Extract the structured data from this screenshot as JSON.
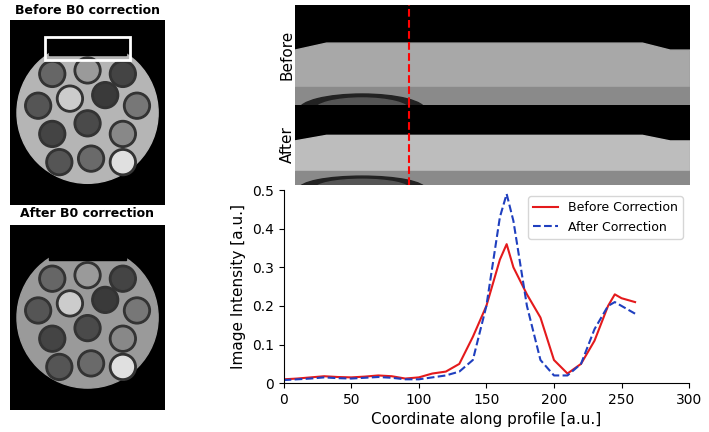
{
  "image_labels": {
    "top_title": "Before B0 correction",
    "bottom_title": "After B0 correction",
    "strip_before": "Before",
    "strip_after": "After"
  },
  "chart_data": {
    "type": "line",
    "x_label": "Coordinate along profile [a.u.]",
    "y_label": "Image Intensity [a.u.]",
    "x": [
      0,
      10,
      20,
      30,
      40,
      50,
      60,
      70,
      80,
      90,
      100,
      110,
      120,
      130,
      140,
      150,
      160,
      165,
      170,
      180,
      190,
      200,
      210,
      220,
      230,
      240,
      245,
      250,
      260
    ],
    "series": [
      {
        "name": "Before Correction",
        "color": "#e41a1c",
        "line_style": "solid",
        "values": [
          0.01,
          0.012,
          0.015,
          0.018,
          0.016,
          0.015,
          0.017,
          0.02,
          0.018,
          0.012,
          0.015,
          0.025,
          0.03,
          0.05,
          0.12,
          0.2,
          0.32,
          0.36,
          0.3,
          0.23,
          0.17,
          0.06,
          0.025,
          0.05,
          0.11,
          0.2,
          0.23,
          0.22,
          0.21
        ]
      },
      {
        "name": "After Correction",
        "color": "#1f3fbf",
        "line_style": "dashed",
        "values": [
          0.008,
          0.01,
          0.012,
          0.015,
          0.013,
          0.012,
          0.014,
          0.016,
          0.014,
          0.01,
          0.01,
          0.015,
          0.02,
          0.03,
          0.06,
          0.2,
          0.43,
          0.49,
          0.42,
          0.2,
          0.06,
          0.02,
          0.02,
          0.05,
          0.14,
          0.2,
          0.21,
          0.2,
          0.18
        ]
      }
    ],
    "xlim": [
      0,
      300
    ],
    "xticks": [
      0,
      50,
      100,
      150,
      200,
      250,
      300
    ],
    "ylim": [
      0,
      0.5
    ],
    "yticks": [
      0,
      0.1,
      0.2,
      0.3,
      0.4,
      0.5
    ],
    "legend": "upper right",
    "grid": false
  }
}
